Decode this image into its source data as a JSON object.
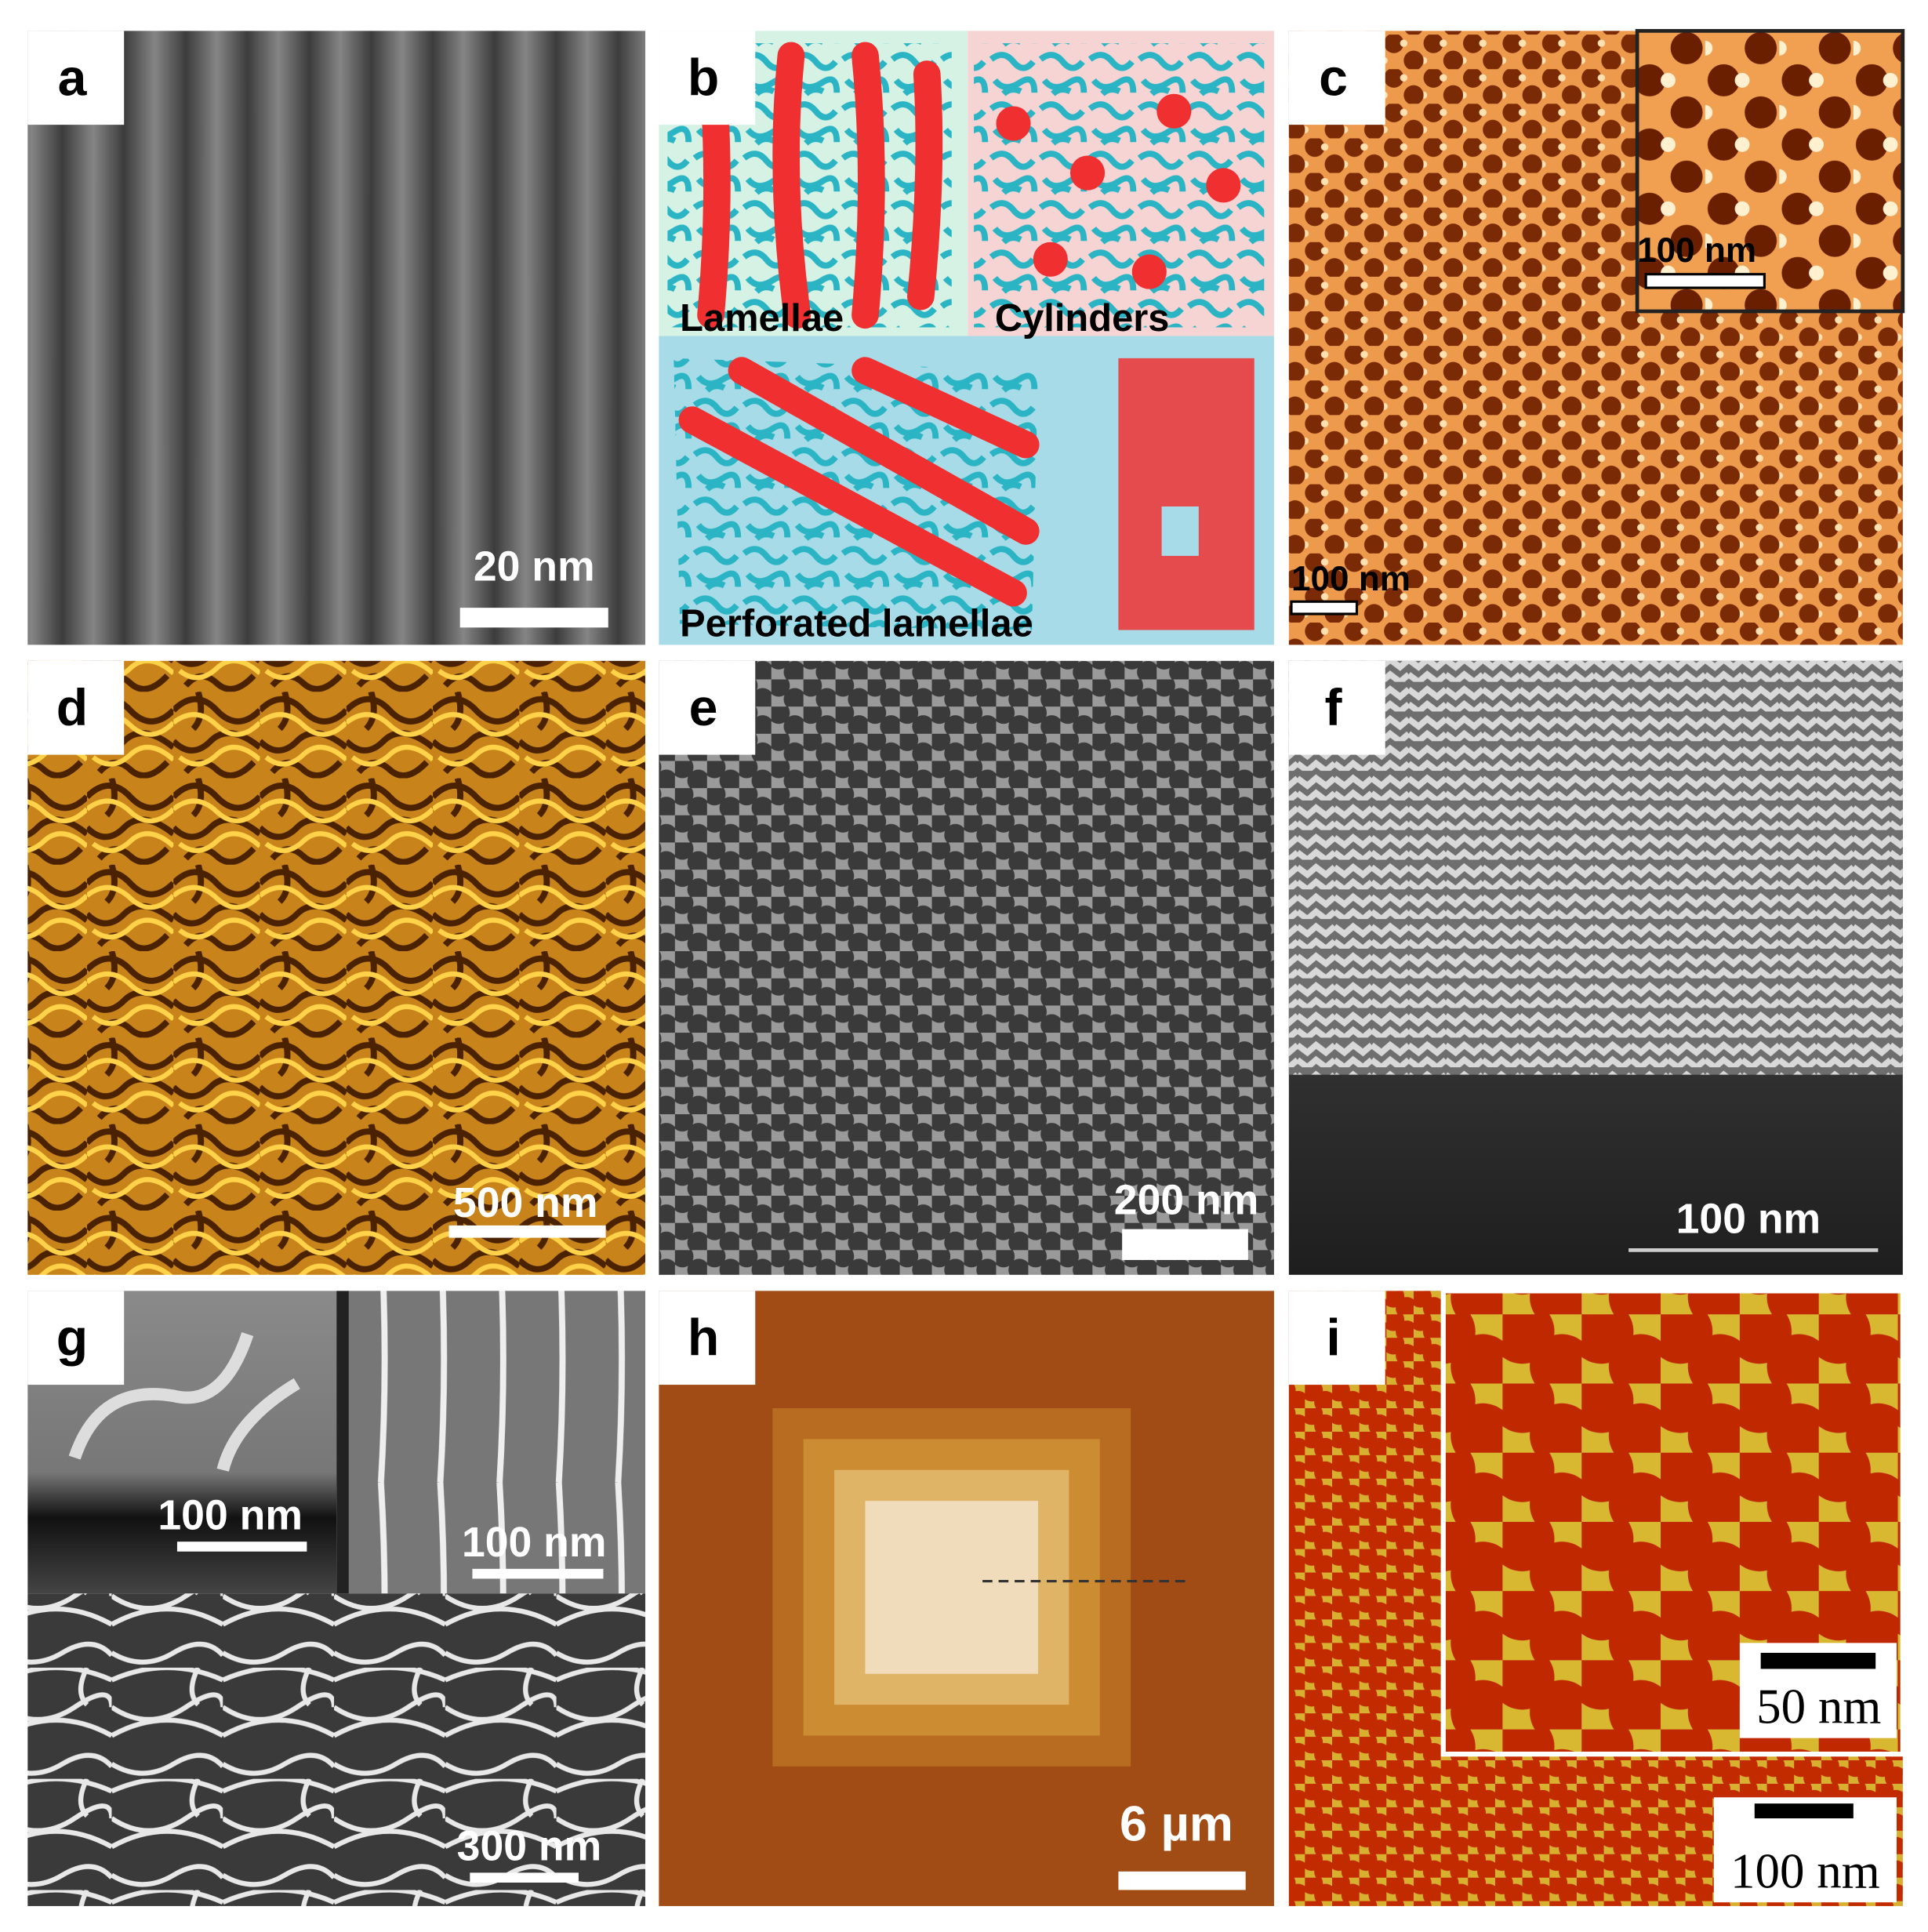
{
  "panels": [
    {
      "letter": "a",
      "scale_bar": "20 nm"
    },
    {
      "letter": "b",
      "labels": [
        "Lamellae",
        "Cylinders",
        "Perforated lamellae"
      ]
    },
    {
      "letter": "c",
      "scale_bar": "100 nm",
      "inset_scale_bar": "100 nm"
    },
    {
      "letter": "d",
      "scale_bar": "500 nm"
    },
    {
      "letter": "e",
      "scale_bar": "200 nm"
    },
    {
      "letter": "f",
      "scale_bar": "100 nm"
    },
    {
      "letter": "g",
      "inset_scale_bars": [
        "100 nm",
        "100 nm"
      ],
      "scale_bar": "300 nm"
    },
    {
      "letter": "h",
      "scale_bar": "6 µm"
    },
    {
      "letter": "i",
      "inset_scale_bar": "50 nm",
      "scale_bar": "100 nm"
    }
  ]
}
